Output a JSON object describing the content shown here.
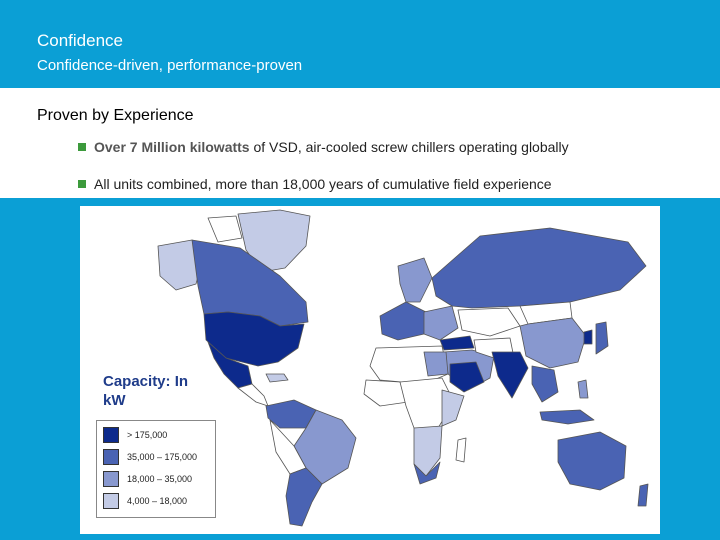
{
  "slide": {
    "title": "Confidence",
    "subtitle": "Confidence-driven, performance-proven",
    "heading": "Proven by Experience",
    "bullets": [
      {
        "bold": "Over 7 Million kilowatts",
        "rest": " of VSD, air-cooled screw chillers operating globally"
      },
      {
        "bold": "",
        "rest": "All units combined, more than 18,000 years of cumulative field experience"
      }
    ]
  },
  "map": {
    "legend_title": "Capacity: In kW",
    "legend": [
      {
        "label": "> 175,000",
        "color": "#0d2a8c"
      },
      {
        "label": "35,000 – 175,000",
        "color": "#4a63b3"
      },
      {
        "label": "18,000 – 35,000",
        "color": "#8898cf"
      },
      {
        "label": "4,000 – 18,000",
        "color": "#c3cbe6"
      }
    ],
    "no_data_color": "#ffffff"
  },
  "colors": {
    "header_blue": "#0b9fd5",
    "bullet_green": "#3c9a3c",
    "legend_title": "#1f3c8a"
  }
}
